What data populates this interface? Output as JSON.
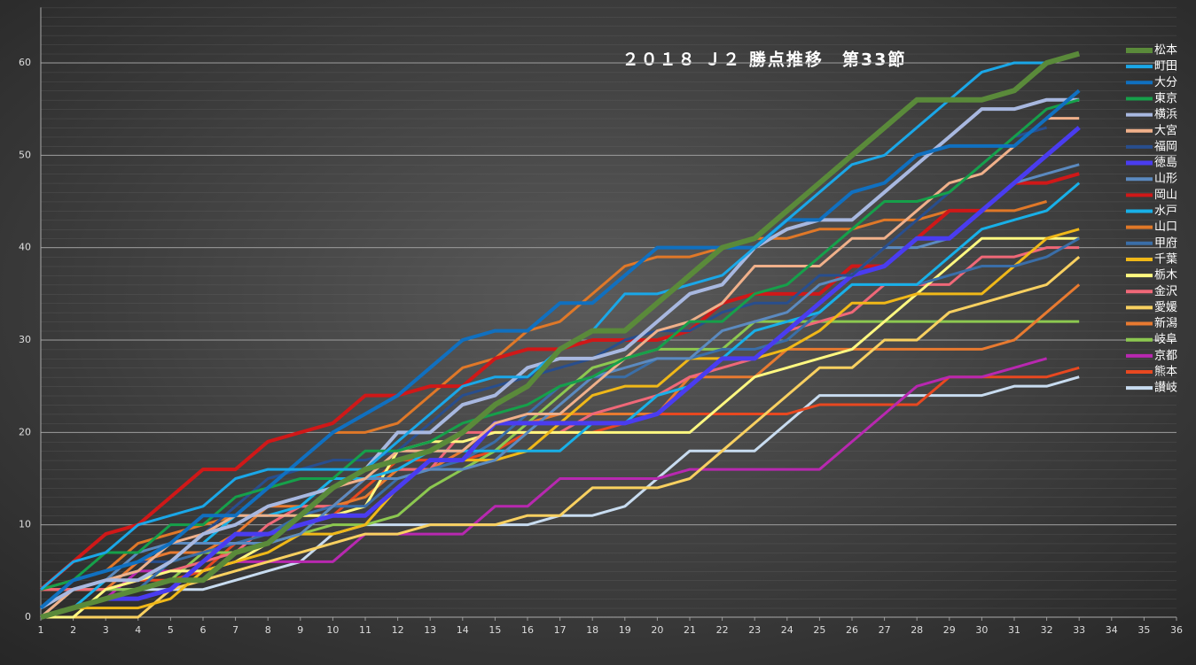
{
  "chart_data": {
    "type": "line",
    "title": "２０１８ Ｊ２ 勝点推移　第33節",
    "x": [
      1,
      2,
      3,
      4,
      5,
      6,
      7,
      8,
      9,
      10,
      11,
      12,
      13,
      14,
      15,
      16,
      17,
      18,
      19,
      20,
      21,
      22,
      23,
      24,
      25,
      26,
      27,
      28,
      29,
      30,
      31,
      32,
      33
    ],
    "xlim": [
      1,
      36
    ],
    "xticks": [
      1,
      2,
      3,
      4,
      5,
      6,
      7,
      8,
      9,
      10,
      11,
      12,
      13,
      14,
      15,
      16,
      17,
      18,
      19,
      20,
      21,
      22,
      23,
      24,
      25,
      26,
      27,
      28,
      29,
      30,
      31,
      32,
      33,
      34,
      35,
      36
    ],
    "ylim": [
      0,
      66
    ],
    "yticks": [
      0,
      10,
      20,
      30,
      40,
      50,
      60
    ],
    "grid": true,
    "legend": "right",
    "series": [
      {
        "name": "松本",
        "color": "#5a8a3a",
        "width": 6,
        "values": [
          0,
          1,
          2,
          3,
          4,
          4,
          7,
          8,
          11,
          14,
          16,
          17,
          18,
          20,
          23,
          25,
          29,
          31,
          31,
          34,
          37,
          40,
          41,
          44,
          47,
          50,
          53,
          56,
          56,
          56,
          57,
          60,
          61
        ]
      },
      {
        "name": "町田",
        "color": "#1aa7e8",
        "width": 3,
        "values": [
          3,
          6,
          7,
          10,
          11,
          12,
          15,
          16,
          16,
          16,
          16,
          19,
          22,
          25,
          26,
          26,
          29,
          31,
          35,
          35,
          36,
          37,
          40,
          43,
          46,
          49,
          50,
          53,
          56,
          59,
          60,
          60,
          null
        ]
      },
      {
        "name": "大分",
        "color": "#1070c0",
        "width": 4,
        "values": [
          1,
          4,
          5,
          6,
          8,
          11,
          11,
          14,
          17,
          20,
          22,
          24,
          27,
          30,
          31,
          31,
          34,
          34,
          37,
          40,
          40,
          40,
          40,
          43,
          43,
          46,
          47,
          50,
          51,
          51,
          51,
          54,
          57
        ]
      },
      {
        "name": "東京",
        "color": "#16a04a",
        "width": 3,
        "values": [
          3,
          4,
          7,
          7,
          10,
          10,
          13,
          14,
          15,
          15,
          18,
          18,
          19,
          21,
          22,
          23,
          25,
          26,
          28,
          29,
          32,
          32,
          35,
          36,
          39,
          42,
          45,
          45,
          46,
          49,
          52,
          55,
          56
        ]
      },
      {
        "name": "横浜",
        "color": "#a8b8e0",
        "width": 4,
        "values": [
          1,
          3,
          4,
          4,
          6,
          9,
          10,
          12,
          13,
          14,
          16,
          20,
          20,
          23,
          24,
          27,
          28,
          28,
          29,
          32,
          35,
          36,
          40,
          42,
          43,
          43,
          46,
          49,
          52,
          55,
          55,
          56,
          56
        ]
      },
      {
        "name": "大宮",
        "color": "#f0b08a",
        "width": 3,
        "values": [
          0,
          3,
          4,
          5,
          8,
          9,
          11,
          11,
          11,
          14,
          15,
          18,
          18,
          18,
          21,
          22,
          22,
          25,
          28,
          31,
          32,
          34,
          38,
          38,
          38,
          41,
          41,
          44,
          47,
          48,
          51,
          54,
          54
        ]
      },
      {
        "name": "福岡",
        "color": "#284e8e",
        "width": 3,
        "values": [
          1,
          4,
          5,
          6,
          6,
          9,
          12,
          15,
          16,
          17,
          17,
          18,
          21,
          24,
          25,
          26,
          27,
          28,
          30,
          31,
          31,
          33,
          34,
          34,
          37,
          37,
          40,
          43,
          46,
          49,
          52,
          53,
          null
        ]
      },
      {
        "name": "徳島",
        "color": "#4a3cf0",
        "width": 5,
        "values": [
          0,
          1,
          2,
          2,
          3,
          6,
          9,
          9,
          10,
          11,
          11,
          14,
          17,
          17,
          21,
          21,
          21,
          21,
          21,
          22,
          25,
          28,
          28,
          31,
          34,
          37,
          38,
          41,
          41,
          44,
          47,
          50,
          53
        ]
      },
      {
        "name": "山形",
        "color": "#5b8ac0",
        "width": 3,
        "values": [
          0,
          3,
          4,
          7,
          8,
          8,
          8,
          8,
          9,
          12,
          15,
          15,
          16,
          16,
          17,
          20,
          23,
          26,
          27,
          28,
          28,
          31,
          32,
          33,
          36,
          37,
          40,
          40,
          41,
          44,
          47,
          48,
          49
        ]
      },
      {
        "name": "岡山",
        "color": "#d01818",
        "width": 4,
        "values": [
          3,
          6,
          9,
          10,
          13,
          16,
          16,
          19,
          20,
          21,
          24,
          24,
          25,
          25,
          28,
          29,
          29,
          30,
          30,
          30,
          31,
          34,
          35,
          35,
          35,
          38,
          38,
          41,
          44,
          44,
          47,
          47,
          48
        ]
      },
      {
        "name": "水戸",
        "color": "#18b0e8",
        "width": 3,
        "values": [
          0,
          1,
          4,
          5,
          8,
          8,
          11,
          11,
          12,
          15,
          15,
          16,
          18,
          18,
          18,
          18,
          18,
          21,
          21,
          24,
          25,
          28,
          31,
          32,
          33,
          36,
          36,
          36,
          39,
          42,
          43,
          44,
          47
        ]
      },
      {
        "name": "山口",
        "color": "#e07828",
        "width": 3,
        "values": [
          3,
          4,
          5,
          8,
          9,
          10,
          11,
          14,
          17,
          20,
          20,
          21,
          24,
          27,
          28,
          31,
          32,
          35,
          38,
          39,
          39,
          40,
          41,
          41,
          42,
          42,
          43,
          43,
          44,
          44,
          44,
          45,
          null
        ]
      },
      {
        "name": "甲府",
        "color": "#3a6ea8",
        "width": 3,
        "values": [
          0,
          1,
          2,
          3,
          6,
          7,
          8,
          9,
          11,
          12,
          12,
          15,
          16,
          17,
          19,
          22,
          25,
          26,
          26,
          28,
          28,
          29,
          29,
          30,
          33,
          36,
          36,
          36,
          37,
          38,
          38,
          39,
          41
        ]
      },
      {
        "name": "千葉",
        "color": "#f0b818",
        "width": 3,
        "values": [
          0,
          1,
          1,
          1,
          2,
          5,
          6,
          7,
          9,
          9,
          10,
          14,
          17,
          17,
          17,
          18,
          21,
          24,
          25,
          25,
          28,
          28,
          28,
          29,
          31,
          34,
          34,
          35,
          35,
          35,
          38,
          41,
          42
        ]
      },
      {
        "name": "栃木",
        "color": "#fff880",
        "width": 3,
        "values": [
          0,
          0,
          3,
          4,
          5,
          5,
          6,
          8,
          11,
          11,
          12,
          18,
          19,
          19,
          20,
          20,
          20,
          20,
          20,
          20,
          20,
          23,
          26,
          27,
          28,
          29,
          32,
          35,
          38,
          41,
          41,
          41,
          41
        ]
      },
      {
        "name": "金沢",
        "color": "#f06878",
        "width": 3,
        "values": [
          3,
          3,
          3,
          4,
          5,
          6,
          7,
          10,
          12,
          12,
          15,
          16,
          16,
          20,
          20,
          20,
          20,
          22,
          23,
          24,
          26,
          27,
          28,
          31,
          32,
          33,
          36,
          36,
          36,
          39,
          39,
          40,
          40
        ]
      },
      {
        "name": "愛媛",
        "color": "#f8d060",
        "width": 3,
        "values": [
          0,
          0,
          0,
          0,
          3,
          4,
          5,
          6,
          7,
          8,
          9,
          9,
          10,
          10,
          10,
          11,
          11,
          14,
          14,
          14,
          15,
          18,
          21,
          24,
          27,
          27,
          30,
          30,
          33,
          34,
          35,
          36,
          39
        ]
      },
      {
        "name": "新潟",
        "color": "#e87a30",
        "width": 3,
        "values": [
          3,
          3,
          3,
          6,
          7,
          7,
          9,
          12,
          12,
          12,
          13,
          16,
          16,
          18,
          21,
          21,
          22,
          22,
          22,
          22,
          26,
          26,
          26,
          29,
          29,
          29,
          29,
          29,
          29,
          29,
          30,
          33,
          36
        ]
      },
      {
        "name": "岐阜",
        "color": "#8cc850",
        "width": 3,
        "values": [
          0,
          3,
          3,
          3,
          4,
          7,
          7,
          8,
          9,
          10,
          10,
          11,
          14,
          16,
          18,
          21,
          24,
          27,
          28,
          29,
          29,
          29,
          32,
          32,
          32,
          32,
          32,
          32,
          32,
          32,
          32,
          32,
          32
        ]
      },
      {
        "name": "京都",
        "color": "#b828b0",
        "width": 3,
        "values": [
          0,
          1,
          2,
          5,
          5,
          5,
          6,
          6,
          6,
          6,
          9,
          9,
          9,
          9,
          12,
          12,
          15,
          15,
          15,
          15,
          16,
          16,
          16,
          16,
          16,
          19,
          22,
          25,
          26,
          26,
          27,
          28,
          null
        ]
      },
      {
        "name": "熊本",
        "color": "#e84820",
        "width": 3,
        "values": [
          3,
          3,
          3,
          4,
          4,
          5,
          8,
          8,
          11,
          11,
          14,
          17,
          17,
          17,
          18,
          20,
          20,
          20,
          21,
          22,
          22,
          22,
          22,
          22,
          23,
          23,
          23,
          23,
          26,
          26,
          26,
          26,
          27
        ]
      },
      {
        "name": "讃岐",
        "color": "#c8dcf0",
        "width": 3,
        "values": [
          3,
          3,
          3,
          3,
          3,
          3,
          4,
          5,
          6,
          9,
          10,
          10,
          10,
          10,
          10,
          10,
          11,
          11,
          12,
          15,
          18,
          18,
          18,
          21,
          24,
          24,
          24,
          24,
          24,
          24,
          25,
          25,
          26
        ]
      }
    ]
  }
}
